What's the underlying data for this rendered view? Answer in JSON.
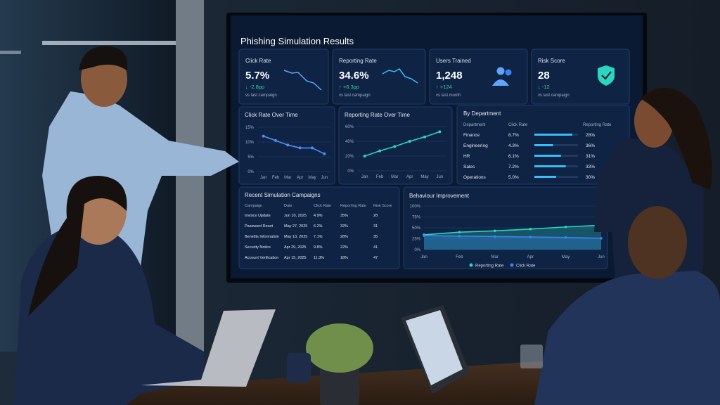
{
  "title": "Phishing Simulation Results",
  "kpis": [
    {
      "label": "Click Rate",
      "value": "5.7%",
      "delta": "↓ -2.8pp",
      "note": "vs last campaign"
    },
    {
      "label": "Reporting Rate",
      "value": "34.6%",
      "delta": "↑ +6.3pp",
      "note": "vs last campaign"
    },
    {
      "label": "Users Trained",
      "value": "1,248",
      "delta": "↑ +124",
      "note": "vs last month"
    },
    {
      "label": "Risk Score",
      "value": "28",
      "delta": "↓ -12",
      "note": "vs last campaign"
    }
  ],
  "click_chart": {
    "type": "line",
    "title": "Click Rate Over Time",
    "categories": [
      "Jan",
      "Feb",
      "Mar",
      "Apr",
      "May",
      "Jun"
    ],
    "values": [
      12,
      10.5,
      9,
      8,
      8,
      6
    ],
    "color": "#4f8ff7",
    "ylim": [
      0,
      15
    ],
    "yticks": [
      {
        "value": 0,
        "label": "0%"
      },
      {
        "value": 5,
        "label": "5%"
      },
      {
        "value": 10,
        "label": "10%"
      },
      {
        "value": 15,
        "label": "15%"
      }
    ]
  },
  "reporting_chart": {
    "type": "line",
    "title": "Reporting Rate Over Time",
    "categories": [
      "Jan",
      "Feb",
      "Mar",
      "Apr",
      "May",
      "Jun"
    ],
    "values": [
      20,
      27,
      33,
      40,
      46,
      53
    ],
    "color": "#2dd4bf",
    "ylim": [
      0,
      60
    ],
    "yticks": [
      {
        "value": 0,
        "label": "0%"
      },
      {
        "value": 20,
        "label": "20%"
      },
      {
        "value": 40,
        "label": "40%"
      },
      {
        "value": 60,
        "label": "60%"
      }
    ]
  },
  "department": {
    "title": "By Department",
    "headers": [
      "Department",
      "Click Rate",
      "Reporting Rate"
    ],
    "categories": [
      "Finance",
      "Engineering",
      "HR",
      "Sales",
      "Operations"
    ],
    "values": [
      8.7,
      4.3,
      6.1,
      7.2,
      5.0
    ],
    "value_labels": [
      "8.7%",
      "4.3%",
      "6.1%",
      "7.2%",
      "5.0%"
    ],
    "reporting": [
      "28%",
      "36%",
      "31%",
      "33%",
      "30%"
    ],
    "xlim": [
      0,
      10
    ],
    "color": "#38bdf8"
  },
  "campaigns": {
    "title": "Recent Simulation Campaigns",
    "headers": [
      "Campaign",
      "Date",
      "Click Rate",
      "Reporting Rate",
      "Risk Score"
    ],
    "rows": [
      [
        "Invoice Update",
        "Jun 10, 2025",
        "4.9%",
        "35%",
        "28"
      ],
      [
        "Password Reset",
        "May 27, 2025",
        "6.2%",
        "32%",
        "31"
      ],
      [
        "Benefits Information",
        "May 13, 2025",
        "7.1%",
        "28%",
        "35"
      ],
      [
        "Security Notice",
        "Apr 29, 2025",
        "9.8%",
        "22%",
        "41"
      ],
      [
        "Account Verification",
        "Apr 15, 2025",
        "11.3%",
        "18%",
        "47"
      ]
    ]
  },
  "behaviour_chart": {
    "type": "area",
    "title": "Behaviour Improvement",
    "categories": [
      "Jan",
      "Feb",
      "Mar",
      "Apr",
      "May",
      "Jun"
    ],
    "series": [
      {
        "name": "Reporting Rate",
        "color": "#2dd4bf",
        "values": [
          34,
          40,
          43,
          47,
          52,
          56
        ]
      },
      {
        "name": "Click Rate",
        "color": "#3b82f6",
        "values": [
          32,
          31,
          30,
          29,
          28,
          26
        ]
      }
    ],
    "ylim": [
      0,
      100
    ],
    "yticks": [
      {
        "value": 0,
        "label": "0%"
      },
      {
        "value": 25,
        "label": "25%"
      },
      {
        "value": 50,
        "label": "50%"
      },
      {
        "value": 75,
        "label": "75%"
      },
      {
        "value": 100,
        "label": "100%"
      }
    ]
  }
}
